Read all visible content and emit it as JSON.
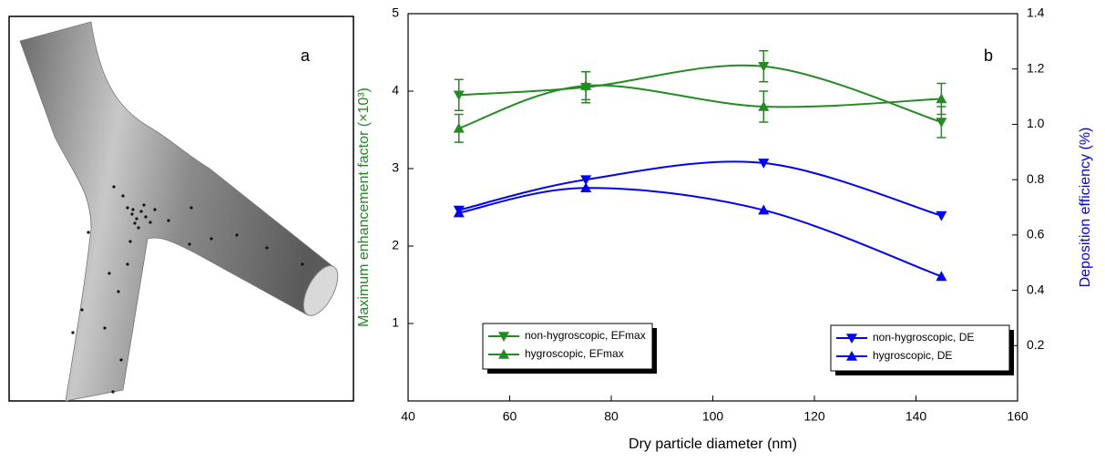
{
  "panel_a": {
    "label": "a"
  },
  "chart_data": {
    "type": "line",
    "panel_label": "b",
    "x_label": "Dry particle diameter (nm)",
    "y_label": "Maximum enhancement factor (×10³)",
    "y2_label": "Deposition efficiency (%)",
    "y_label_color": "#228b22",
    "y2_label_color": "#0000ff",
    "xlim": [
      40,
      160
    ],
    "xticks": [
      40,
      60,
      80,
      100,
      120,
      140,
      160
    ],
    "ylim": [
      0,
      5
    ],
    "yticks": [
      1,
      2,
      3,
      4,
      5
    ],
    "y2lim": [
      0,
      1.4
    ],
    "y2ticks": [
      0.2,
      0.4,
      0.6,
      0.8,
      1.0,
      1.2,
      1.4
    ],
    "series": [
      {
        "name": "non-hygroscopic, EFmax",
        "color": "#228b22",
        "marker": "v",
        "x": [
          50,
          75,
          110,
          145
        ],
        "values": [
          3.95,
          4.05,
          4.32,
          3.6
        ],
        "errors": [
          0.2,
          0.2,
          0.2,
          0.2
        ]
      },
      {
        "name": "hygroscopic, EFmax",
        "color": "#228b22",
        "marker": "^",
        "x": [
          50,
          75,
          110,
          145
        ],
        "values": [
          3.52,
          4.07,
          3.8,
          3.9
        ],
        "errors": [
          0.18,
          0.18,
          0.2,
          0.2
        ]
      },
      {
        "name": "non-hygroscopic, DE",
        "color": "#0000ff",
        "marker": "v",
        "axis": "y2",
        "x": [
          50,
          75,
          110,
          145
        ],
        "values": [
          0.69,
          0.8,
          0.86,
          0.67
        ]
      },
      {
        "name": "hygroscopic, DE",
        "color": "#0000ff",
        "marker": "^",
        "axis": "y2",
        "x": [
          50,
          75,
          110,
          145
        ],
        "values": [
          0.68,
          0.77,
          0.69,
          0.45
        ]
      }
    ]
  }
}
